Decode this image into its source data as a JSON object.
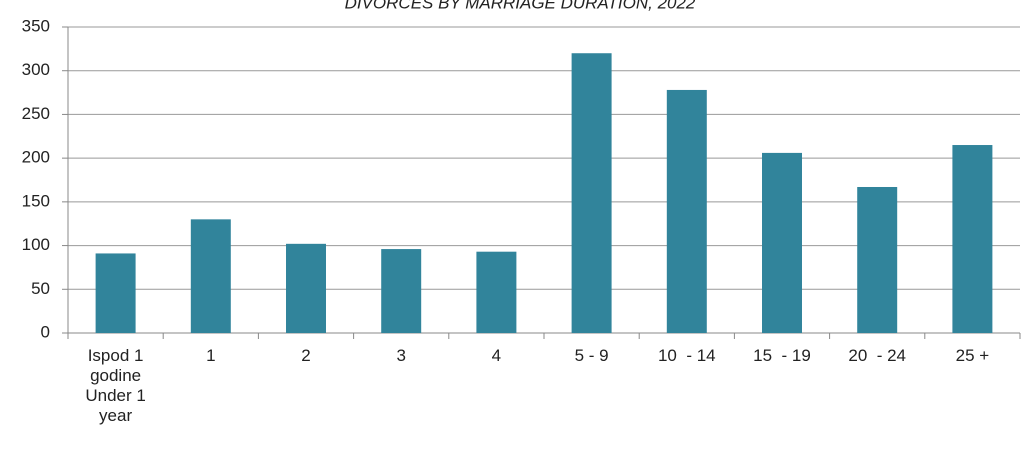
{
  "chart_data": {
    "type": "bar",
    "title": "DIVORCES BY MARRIAGE DURATION, 2022",
    "categories": [
      "Ispod 1 godine Under 1 year",
      "1",
      "2",
      "3",
      "4",
      "5 - 9",
      "10  - 14",
      "15  - 19",
      "20  - 24",
      "25 +"
    ],
    "values": [
      91,
      130,
      102,
      96,
      93,
      320,
      278,
      206,
      167,
      215
    ],
    "color": "#31849b",
    "ylim": [
      0,
      350
    ],
    "yticks": [
      0,
      50,
      100,
      150,
      200,
      250,
      300,
      350
    ],
    "grid": true
  }
}
